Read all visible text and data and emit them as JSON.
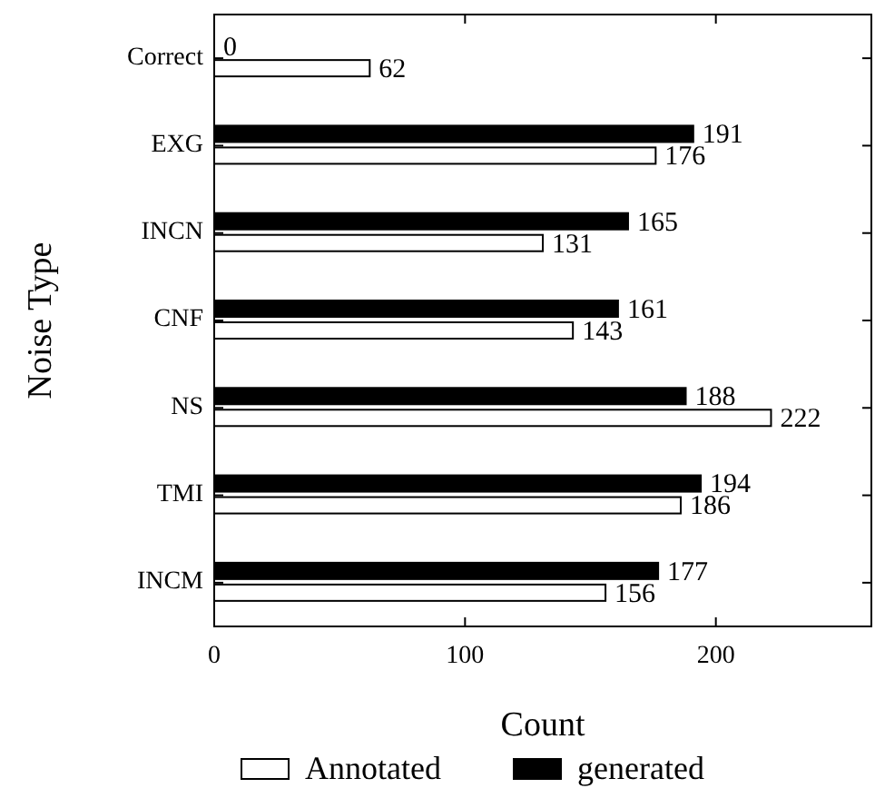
{
  "chart_data": {
    "type": "bar",
    "orientation": "horizontal",
    "xlabel": "Count",
    "ylabel": "Noise Type",
    "categories": [
      "Correct",
      "EXG",
      "INCN",
      "CNF",
      "NS",
      "TMI",
      "INCM"
    ],
    "series": [
      {
        "name": "Annotated",
        "color": "#ffffff",
        "values": [
          62,
          176,
          131,
          143,
          222,
          186,
          156
        ]
      },
      {
        "name": "generated",
        "color": "#000000",
        "values": [
          0,
          191,
          165,
          161,
          188,
          194,
          177
        ]
      }
    ],
    "xlim": [
      0,
      262
    ],
    "xticks": [
      0,
      100,
      200
    ],
    "data_labels": true,
    "legend": "bottom",
    "grid": false
  }
}
